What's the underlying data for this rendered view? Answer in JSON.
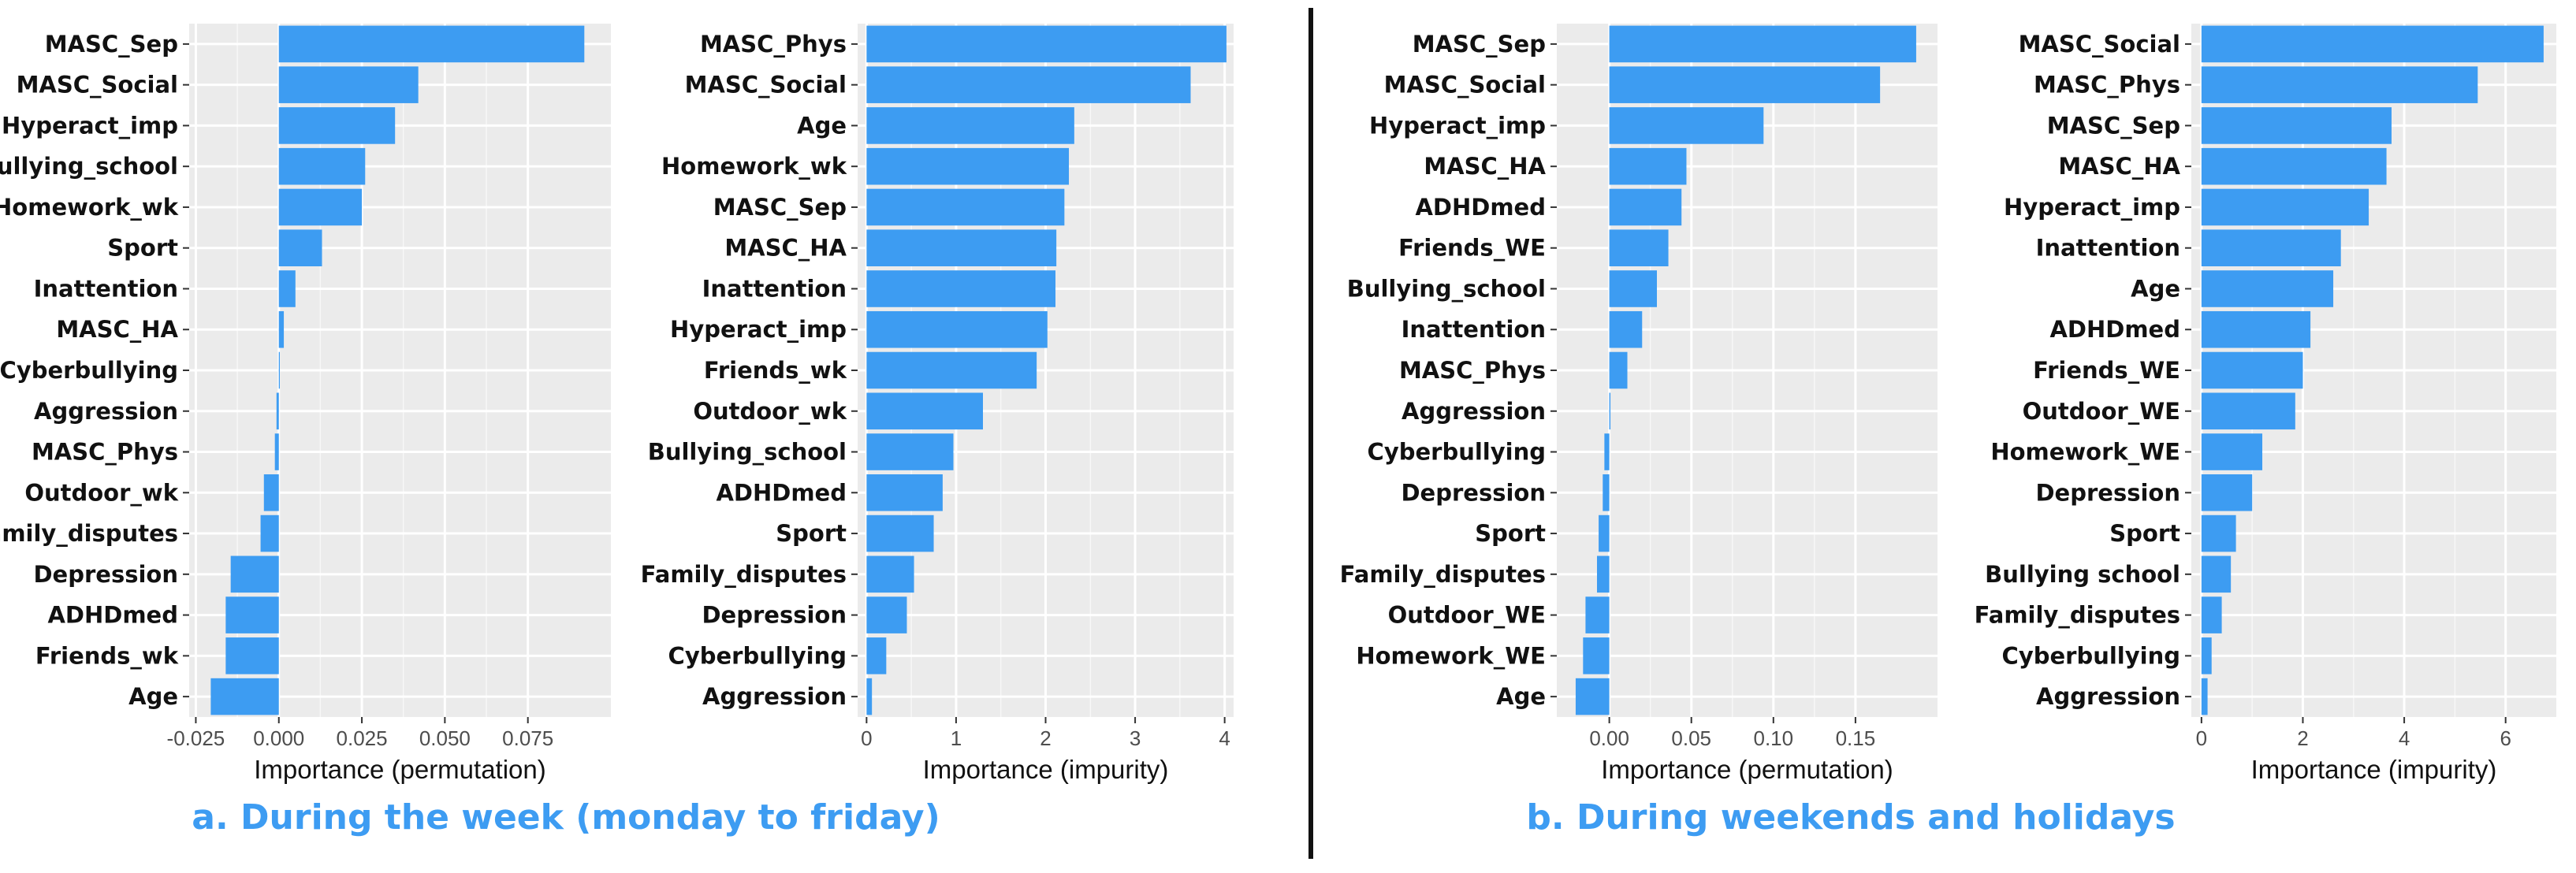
{
  "captions": {
    "a": "a. During the week (monday to friday)",
    "b": "b. During weekends and holidays"
  },
  "colors": {
    "bar": "#3d9cf2",
    "panel": "#ebebeb",
    "grid": "#ffffff",
    "caption": "#3d9cf2"
  },
  "chart_data": [
    {
      "type": "bar",
      "orientation": "horizontal",
      "xlabel": "Importance (permutation)",
      "xlim": [
        -0.027,
        0.1
      ],
      "ticks": [
        -0.025,
        0.0,
        0.025,
        0.05,
        0.075
      ],
      "tick_labels": [
        "-0.025",
        "0.000",
        "0.025",
        "0.050",
        "0.075"
      ],
      "categories": [
        "MASC_Sep",
        "MASC_Social",
        "Hyperact_imp",
        "Bullying_school",
        "Homework_wk",
        "Sport",
        "Inattention",
        "MASC_HA",
        "Cyberbullying",
        "Aggression",
        "MASC_Phys",
        "Outdoor_wk",
        "Family_disputes",
        "Depression",
        "ADHDmed",
        "Friends_wk",
        "Age"
      ],
      "values": [
        0.092,
        0.042,
        0.035,
        0.026,
        0.025,
        0.013,
        0.005,
        0.0015,
        0.0003,
        -0.0007,
        -0.0012,
        -0.0045,
        -0.0055,
        -0.0145,
        -0.016,
        -0.016,
        -0.0205
      ]
    },
    {
      "type": "bar",
      "orientation": "horizontal",
      "xlabel": "Importance (impurity)",
      "xlim": [
        -0.1,
        4.1
      ],
      "ticks": [
        0,
        1,
        2,
        3,
        4
      ],
      "tick_labels": [
        "0",
        "1",
        "2",
        "3",
        "4"
      ],
      "categories": [
        "MASC_Phys",
        "MASC_Social",
        "Age",
        "Homework_wk",
        "MASC_Sep",
        "MASC_HA",
        "Inattention",
        "Hyperact_imp",
        "Friends_wk",
        "Outdoor_wk",
        "Bullying_school",
        "ADHDmed",
        "Sport",
        "Family_disputes",
        "Depression",
        "Cyberbullying",
        "Aggression"
      ],
      "values": [
        4.02,
        3.62,
        2.32,
        2.26,
        2.21,
        2.12,
        2.11,
        2.02,
        1.9,
        1.3,
        0.97,
        0.85,
        0.75,
        0.53,
        0.45,
        0.22,
        0.06
      ]
    },
    {
      "type": "bar",
      "orientation": "horizontal",
      "xlabel": "Importance (permutation)",
      "xlim": [
        -0.032,
        0.2
      ],
      "ticks": [
        0.0,
        0.05,
        0.1,
        0.15
      ],
      "tick_labels": [
        "0.00",
        "0.05",
        "0.10",
        "0.15"
      ],
      "categories": [
        "MASC_Sep",
        "MASC_Social",
        "Hyperact_imp",
        "MASC_HA",
        "ADHDmed",
        "Friends_WE",
        "Bullying_school",
        "Inattention",
        "MASC_Phys",
        "Aggression",
        "Cyberbullying",
        "Depression",
        "Sport",
        "Family_disputes",
        "Outdoor_WE",
        "Homework_WE",
        "Age"
      ],
      "values": [
        0.187,
        0.165,
        0.094,
        0.047,
        0.044,
        0.036,
        0.029,
        0.02,
        0.011,
        0.0007,
        -0.003,
        -0.004,
        -0.0065,
        -0.0075,
        -0.0145,
        -0.016,
        -0.0205
      ]
    },
    {
      "type": "bar",
      "orientation": "horizontal",
      "xlabel": "Importance (impurity)",
      "xlim": [
        -0.2,
        7.0
      ],
      "ticks": [
        0,
        2,
        4,
        6
      ],
      "tick_labels": [
        "0",
        "2",
        "4",
        "6"
      ],
      "categories": [
        "MASC_Social",
        "MASC_Phys",
        "MASC_Sep",
        "MASC_HA",
        "Hyperact_imp",
        "Inattention",
        "Age",
        "ADHDmed",
        "Friends_WE",
        "Outdoor_WE",
        "Homework_WE",
        "Depression",
        "Sport",
        "Bullying school",
        "Family_disputes",
        "Cyberbullying",
        "Aggression"
      ],
      "values": [
        6.75,
        5.45,
        3.75,
        3.65,
        3.3,
        2.75,
        2.6,
        2.15,
        2.0,
        1.85,
        1.2,
        1.0,
        0.68,
        0.58,
        0.4,
        0.2,
        0.12
      ]
    }
  ]
}
